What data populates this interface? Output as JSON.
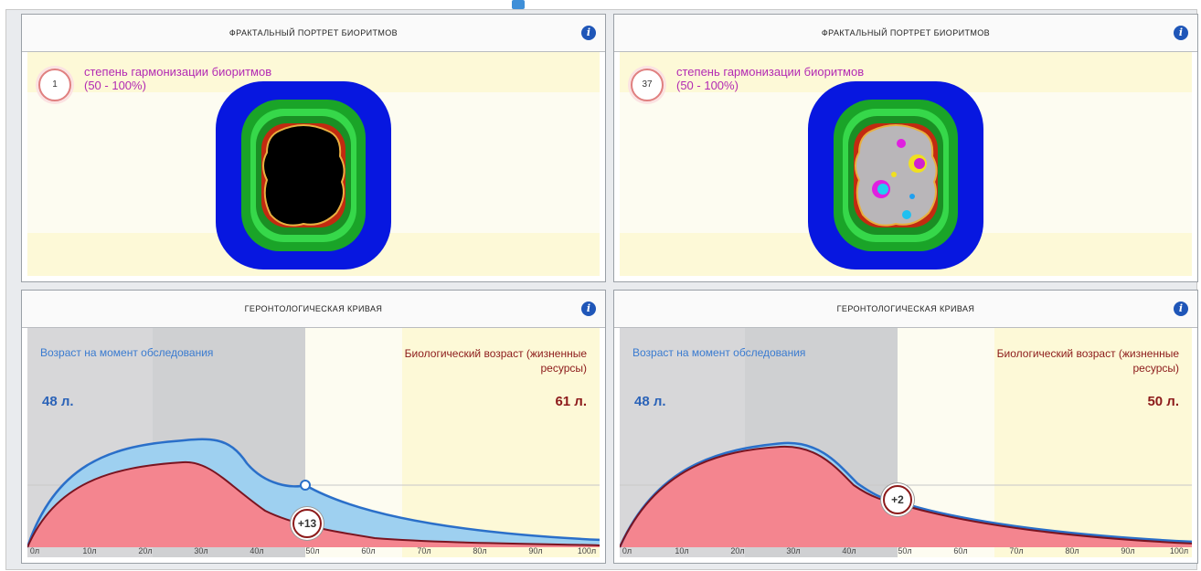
{
  "panels": {
    "tl": {
      "title": "ФРАКТАЛЬНЫЙ ПОРТРЕТ БИОРИТМОВ",
      "badge": "1",
      "harmony_label_1": "степень гармонизации биоритмов",
      "harmony_label_2": "(50 - 100%)",
      "info_icon": "info-icon"
    },
    "tr": {
      "title": "ФРАКТАЛЬНЫЙ ПОРТРЕТ БИОРИТМОВ",
      "badge": "37",
      "harmony_label_1": "степень гармонизации биоритмов",
      "harmony_label_2": "(50 - 100%)",
      "info_icon": "info-icon"
    },
    "bl": {
      "title": "ГЕРОНТОЛОГИЧЕСКАЯ КРИВАЯ",
      "age_label": "Возраст на момент обследования",
      "age_value": "48 л.",
      "bio_label": "Биологический возраст (жизненные ресурсы)",
      "bio_value": "61 л.",
      "marker": "+13"
    },
    "br": {
      "title": "ГЕРОНТОЛОГИЧЕСКАЯ КРИВАЯ",
      "age_label": "Возраст на момент обследования",
      "age_value": "48 л.",
      "bio_label": "Биологический возраст (жизненные ресурсы)",
      "bio_value": "50 л.",
      "marker": "+2"
    }
  },
  "ticks": [
    "0л",
    "10л",
    "20л",
    "30л",
    "40л",
    "50л",
    "60л",
    "70л",
    "80л",
    "90л",
    "100л"
  ],
  "colors": {
    "blue_curve": "#2a6fc9",
    "red_curve": "#7a1420",
    "blue_fill": "#9ed0f0",
    "red_fill": "#f4858f",
    "harmony_text": "#b32bb3"
  }
}
